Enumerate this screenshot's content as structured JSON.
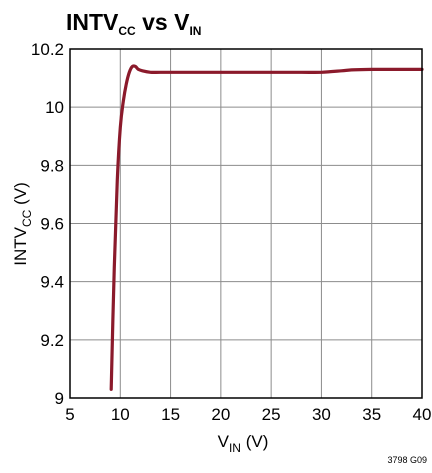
{
  "chart_data": {
    "type": "line",
    "title": {
      "main": "INTV",
      "sub1": "CC",
      "mid": " vs V",
      "sub2": "IN"
    },
    "xlabel": {
      "main": "V",
      "sub": "IN",
      "unit": " (V)"
    },
    "ylabel": {
      "main": "INTV",
      "sub": "CC",
      "unit": "  (V)"
    },
    "xlim": [
      5,
      40
    ],
    "ylim": [
      9.0,
      10.2
    ],
    "xticks": [
      5,
      10,
      15,
      20,
      25,
      30,
      35,
      40
    ],
    "xtick_labels": [
      "5",
      "10",
      "15",
      "20",
      "25",
      "30",
      "35",
      "40"
    ],
    "yticks": [
      9.0,
      9.2,
      9.4,
      9.6,
      9.8,
      10.0,
      10.2
    ],
    "ytick_labels": [
      "9",
      "9.2",
      "9.4",
      "9.6",
      "9.8",
      "10",
      "10.2"
    ],
    "grid": true,
    "series": [
      {
        "color": "#8b1a2b",
        "x": [
          9.1,
          9.4,
          9.7,
          10.0,
          10.3,
          10.6,
          10.9,
          11.2,
          11.5,
          11.8,
          12.2,
          13.0,
          14.0,
          16.0,
          20.0,
          25.0,
          28.0,
          30.0,
          32.0,
          33.0,
          35.0,
          37.0,
          40.0
        ],
        "y": [
          9.03,
          9.45,
          9.75,
          9.93,
          10.02,
          10.08,
          10.12,
          10.14,
          10.14,
          10.13,
          10.125,
          10.12,
          10.12,
          10.12,
          10.12,
          10.12,
          10.12,
          10.12,
          10.125,
          10.128,
          10.13,
          10.13,
          10.13
        ]
      }
    ],
    "note": "3798 G09"
  }
}
